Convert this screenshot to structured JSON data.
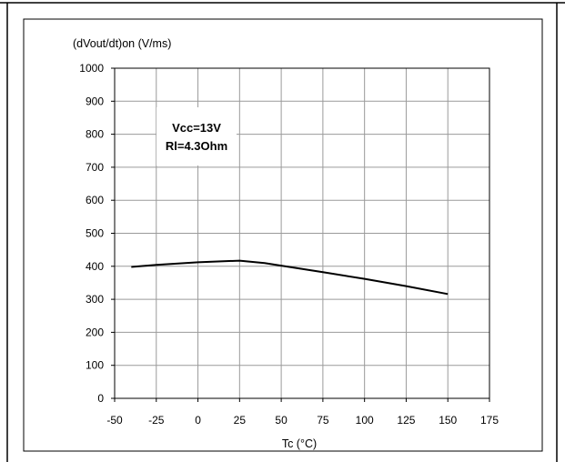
{
  "chart_data": {
    "type": "line",
    "title": "",
    "ylabel": "(dVout/dt)on (V/ms)",
    "xlabel": "Tc (°C)",
    "xlim": [
      -50,
      175
    ],
    "ylim": [
      0,
      1000
    ],
    "x_ticks": [
      -50,
      -25,
      0,
      25,
      50,
      75,
      100,
      125,
      150,
      175
    ],
    "y_ticks": [
      0,
      100,
      200,
      300,
      400,
      500,
      600,
      700,
      800,
      900,
      1000
    ],
    "grid": true,
    "legend": "none",
    "series": [
      {
        "color": "#000000",
        "x": [
          -40,
          -25,
          0,
          25,
          40,
          50,
          75,
          100,
          125,
          150
        ],
        "y": [
          398,
          404,
          412,
          417,
          410,
          402,
          382,
          362,
          340,
          316
        ]
      }
    ],
    "annotation": {
      "lines": [
        "Vcc=13V",
        "Rl=4.3Ohm"
      ]
    }
  }
}
